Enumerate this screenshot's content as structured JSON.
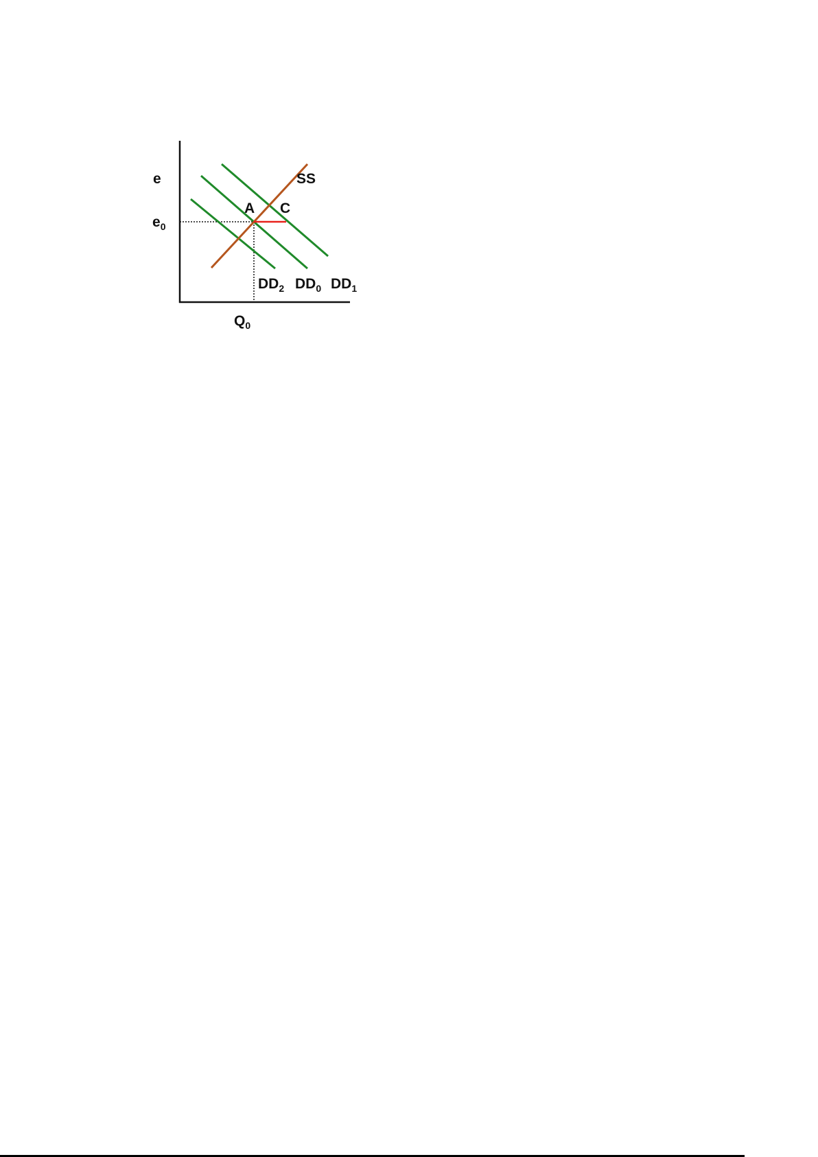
{
  "diagram": {
    "axis_labels": {
      "y": "e",
      "y_tick": "e",
      "y_tick_sub": "0",
      "x_tick": "Q",
      "x_tick_sub": "0"
    },
    "curves": [
      {
        "id": "SS",
        "label": "SS",
        "sub": "",
        "color": "#b5561e"
      },
      {
        "id": "DD2",
        "label": "DD",
        "sub": "2",
        "color": "#1f8a2a"
      },
      {
        "id": "DD0",
        "label": "DD",
        "sub": "0",
        "color": "#1f8a2a"
      },
      {
        "id": "DD1",
        "label": "DD",
        "sub": "1",
        "color": "#1f8a2a"
      }
    ],
    "points": {
      "A": "A",
      "C": "C"
    },
    "gap_color": "#e8221c",
    "axis_color": "#111111"
  }
}
